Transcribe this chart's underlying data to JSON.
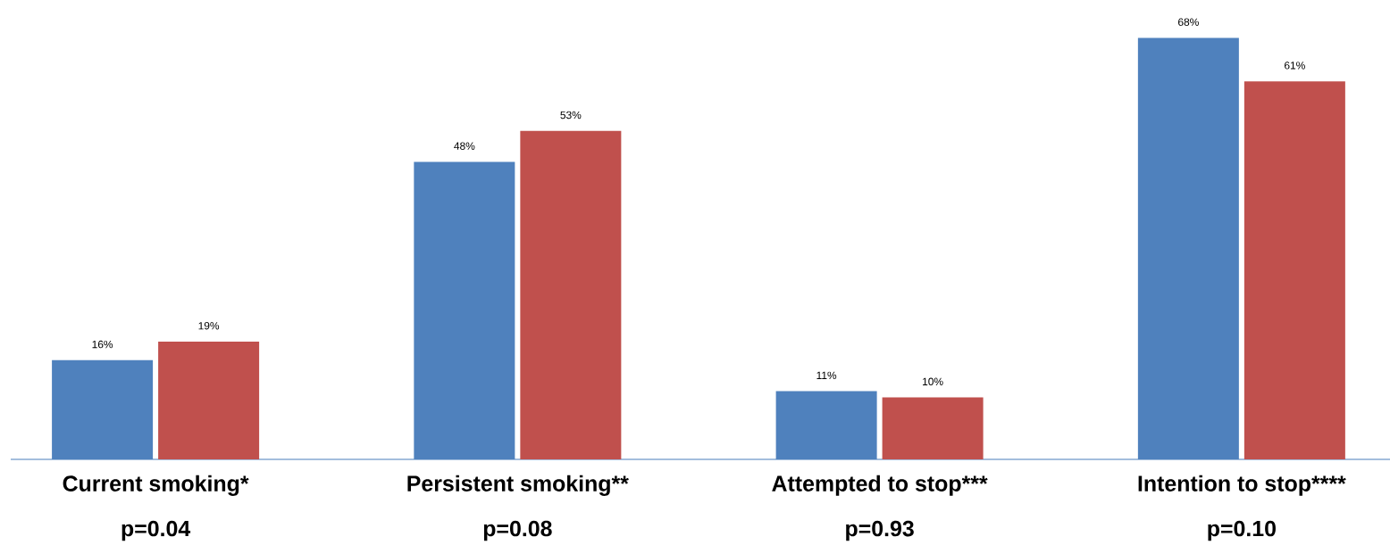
{
  "chart_data": {
    "type": "bar",
    "categories": [
      "Current smoking*",
      "Persistent smoking**",
      "Attempted to stop***",
      "Intention to stop****"
    ],
    "series": [
      {
        "color": "#4f81bd",
        "values": [
          16,
          48,
          11,
          68
        ],
        "value_labels": [
          "16%",
          "48%",
          "11%",
          "68%"
        ]
      },
      {
        "color": "#c0504d",
        "values": [
          19,
          53,
          10,
          61
        ],
        "value_labels": [
          "19%",
          "53%",
          "10%",
          "61%"
        ]
      }
    ],
    "annotations": [
      "p=0.04",
      "p=0.08",
      "p=0.93",
      "p=0.10"
    ],
    "tick_labels": "x"
  }
}
